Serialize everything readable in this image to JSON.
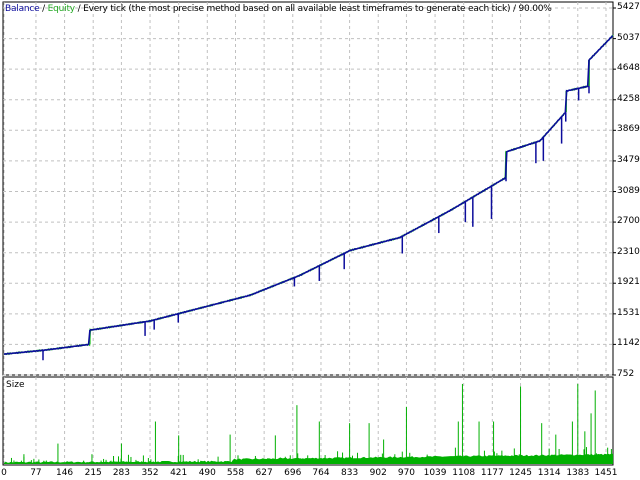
{
  "chart_data": [
    {
      "type": "line",
      "legend": {
        "balance": "Balance",
        "equity": "Equity",
        "separator": " / ",
        "description": "Every tick (the most precise method based on all available least timeframes to generate each tick)",
        "quality": "90.00%"
      },
      "colors": {
        "balance": "#0c0c9c",
        "equity": "#22c322",
        "grid": "#c0c0c0"
      },
      "grid": true,
      "xlim": [
        0,
        1470
      ],
      "ylim": [
        752,
        5427
      ],
      "y_ticks": [
        5427,
        5037,
        4648,
        4258,
        3869,
        3479,
        3089,
        2700,
        2310,
        1921,
        1531,
        1142,
        752
      ],
      "x_ticks": [
        0,
        77,
        146,
        215,
        283,
        352,
        421,
        490,
        558,
        627,
        696,
        764,
        833,
        902,
        970,
        1039,
        1108,
        1177,
        1245,
        1314,
        1383,
        1451
      ],
      "balance": [
        [
          0,
          1018
        ],
        [
          100,
          1070
        ],
        [
          206,
          1142
        ],
        [
          207,
          1323
        ],
        [
          352,
          1440
        ],
        [
          593,
          1768
        ],
        [
          713,
          2021
        ],
        [
          834,
          2338
        ],
        [
          954,
          2503
        ],
        [
          1075,
          2846
        ],
        [
          1209,
          3265
        ],
        [
          1210,
          3594
        ],
        [
          1292,
          3735
        ],
        [
          1354,
          4102
        ],
        [
          1355,
          4369
        ],
        [
          1409,
          4432
        ],
        [
          1410,
          4762
        ],
        [
          1468,
          5079
        ]
      ],
      "equity_dips": [
        [
          94,
          940
        ],
        [
          340,
          1250
        ],
        [
          362,
          1330
        ],
        [
          420,
          1420
        ],
        [
          700,
          1880
        ],
        [
          760,
          1950
        ],
        [
          820,
          2100
        ],
        [
          960,
          2300
        ],
        [
          1048,
          2560
        ],
        [
          1112,
          2700
        ],
        [
          1130,
          2640
        ],
        [
          1175,
          2740
        ],
        [
          1210,
          3220
        ],
        [
          1282,
          3450
        ],
        [
          1300,
          3480
        ],
        [
          1344,
          3700
        ],
        [
          1354,
          3980
        ],
        [
          1385,
          4250
        ],
        [
          1410,
          4340
        ]
      ]
    },
    {
      "type": "bar",
      "title": "Size",
      "color": "#00b000",
      "peaks": [
        [
          48,
          0.12
        ],
        [
          130,
          0.25
        ],
        [
          212,
          0.12
        ],
        [
          283,
          0.25
        ],
        [
          365,
          0.52
        ],
        [
          421,
          0.35
        ],
        [
          545,
          0.36
        ],
        [
          654,
          0.35
        ],
        [
          706,
          0.72
        ],
        [
          760,
          0.52
        ],
        [
          833,
          0.5
        ],
        [
          880,
          0.5
        ],
        [
          915,
          0.3
        ],
        [
          970,
          0.7
        ],
        [
          1088,
          0.2
        ],
        [
          1095,
          0.52
        ],
        [
          1105,
          0.98
        ],
        [
          1145,
          0.52
        ],
        [
          1180,
          0.52
        ],
        [
          1245,
          0.95
        ],
        [
          1296,
          0.5
        ],
        [
          1330,
          0.36
        ],
        [
          1370,
          0.52
        ],
        [
          1383,
          0.98
        ],
        [
          1400,
          0.4
        ],
        [
          1415,
          0.62
        ],
        [
          1425,
          0.9
        ],
        [
          1455,
          0.2
        ]
      ]
    }
  ]
}
